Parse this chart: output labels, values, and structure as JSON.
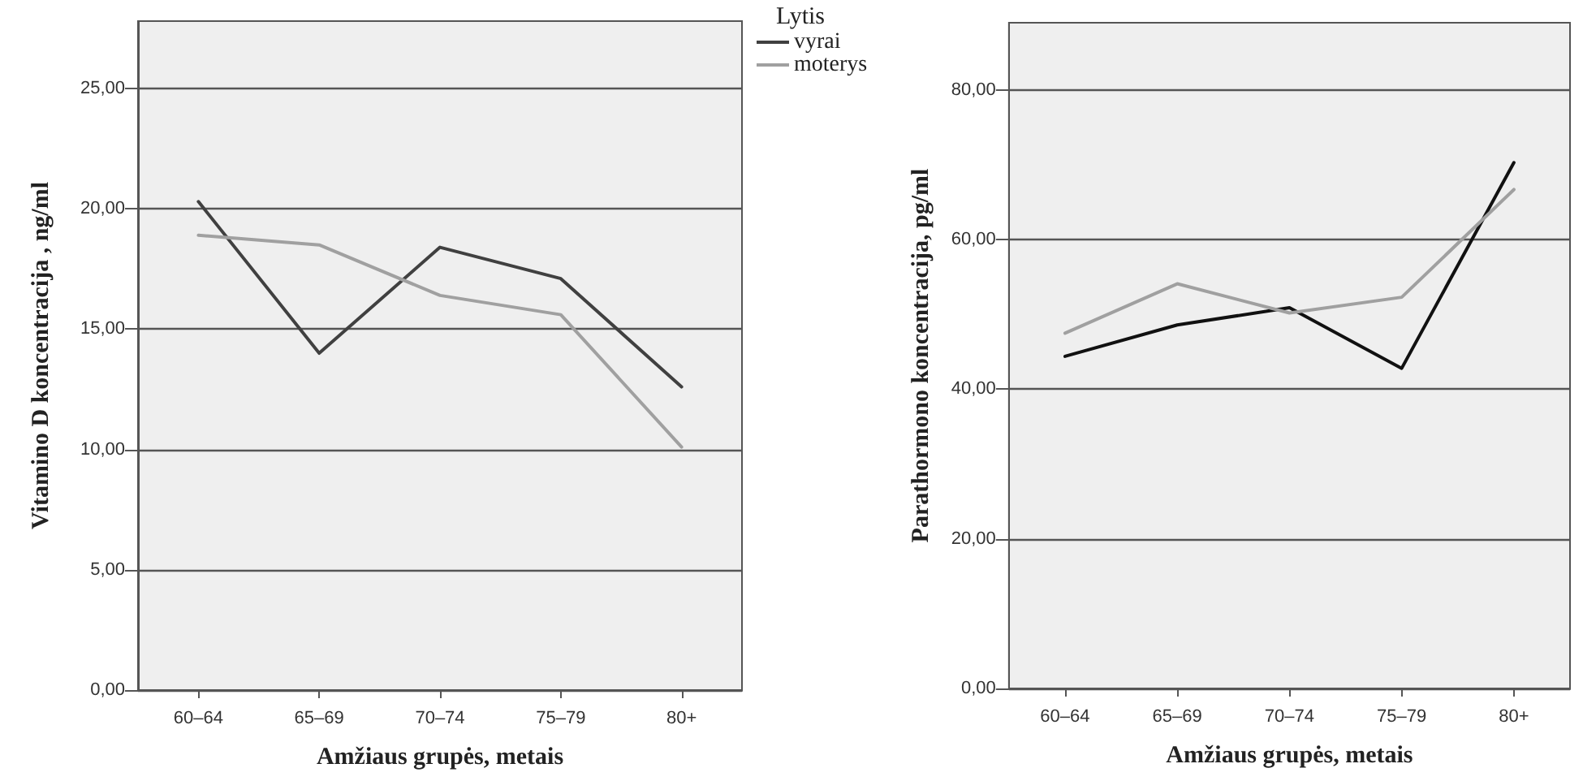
{
  "chart_data": [
    {
      "type": "line",
      "xlabel": "Amžiaus grupės, metais",
      "ylabel": "Vitamino D koncentracija , ng/ml",
      "legend_title": "Lytis",
      "legend": "right",
      "grid": "y",
      "marker": "none",
      "line_style": "solid",
      "categories": [
        "60–64",
        "65–69",
        "70–74",
        "75–79",
        "80+"
      ],
      "ylim": [
        0,
        27.8
      ],
      "yticks": [
        {
          "value": 0,
          "label": "0,00"
        },
        {
          "value": 5,
          "label": "5,00"
        },
        {
          "value": 10,
          "label": "10,00"
        },
        {
          "value": 15,
          "label": "15,00"
        },
        {
          "value": 20,
          "label": "20,00"
        },
        {
          "value": 25,
          "label": "25,00"
        }
      ],
      "series": [
        {
          "name": "vyrai",
          "color": "#404040",
          "values": [
            20.3,
            14.0,
            18.4,
            17.1,
            12.6
          ]
        },
        {
          "name": "moterys",
          "color": "#a0a0a0",
          "values": [
            18.9,
            18.5,
            16.4,
            15.6,
            10.1
          ]
        }
      ]
    },
    {
      "type": "line",
      "xlabel": "Amžiaus grupės, metais",
      "ylabel": "Parathormono koncentracija, pg/ml",
      "grid": "y",
      "marker": "none",
      "line_style": "solid",
      "categories": [
        "60–64",
        "65–69",
        "70–74",
        "75–79",
        "80+"
      ],
      "ylim": [
        0,
        89
      ],
      "yticks": [
        {
          "value": 0,
          "label": "0,00"
        },
        {
          "value": 20,
          "label": "20,00"
        },
        {
          "value": 40,
          "label": "40,00"
        },
        {
          "value": 60,
          "label": "60,00"
        },
        {
          "value": 80,
          "label": "80,00"
        }
      ],
      "series": [
        {
          "color": "#111111",
          "values": [
            44.4,
            48.6,
            50.9,
            42.8,
            70.3
          ]
        },
        {
          "color": "#a0a0a0",
          "values": [
            47.5,
            54.1,
            50.2,
            52.3,
            66.7
          ]
        }
      ]
    }
  ]
}
